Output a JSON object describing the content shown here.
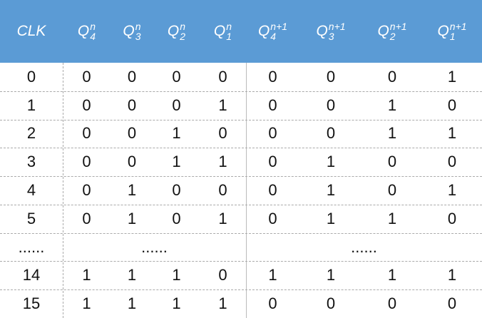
{
  "table": {
    "header": [
      {
        "text": "CLK"
      },
      {
        "base": "Q",
        "sub": "4",
        "sup": "n"
      },
      {
        "base": "Q",
        "sub": "3",
        "sup": "n"
      },
      {
        "base": "Q",
        "sub": "2",
        "sup": "n"
      },
      {
        "base": "Q",
        "sub": "1",
        "sup": "n"
      },
      {
        "base": "Q",
        "sub": "4",
        "sup": "n+1"
      },
      {
        "base": "Q",
        "sub": "3",
        "sup": "n+1"
      },
      {
        "base": "Q",
        "sub": "2",
        "sup": "n+1"
      },
      {
        "base": "Q",
        "sub": "1",
        "sup": "n+1"
      }
    ],
    "rows": [
      [
        "0",
        "0",
        "0",
        "0",
        "0",
        "0",
        "0",
        "0",
        "1"
      ],
      [
        "1",
        "0",
        "0",
        "0",
        "1",
        "0",
        "0",
        "1",
        "0"
      ],
      [
        "2",
        "0",
        "0",
        "1",
        "0",
        "0",
        "0",
        "1",
        "1"
      ],
      [
        "3",
        "0",
        "0",
        "1",
        "1",
        "0",
        "1",
        "0",
        "0"
      ],
      [
        "4",
        "0",
        "1",
        "0",
        "0",
        "0",
        "1",
        "0",
        "1"
      ],
      [
        "5",
        "0",
        "1",
        "0",
        "1",
        "0",
        "1",
        "1",
        "0"
      ],
      [
        "......",
        "......",
        "......"
      ],
      [
        "14",
        "1",
        "1",
        "1",
        "0",
        "1",
        "1",
        "1",
        "1"
      ],
      [
        "15",
        "1",
        "1",
        "1",
        "1",
        "0",
        "0",
        "0",
        "0"
      ]
    ]
  }
}
